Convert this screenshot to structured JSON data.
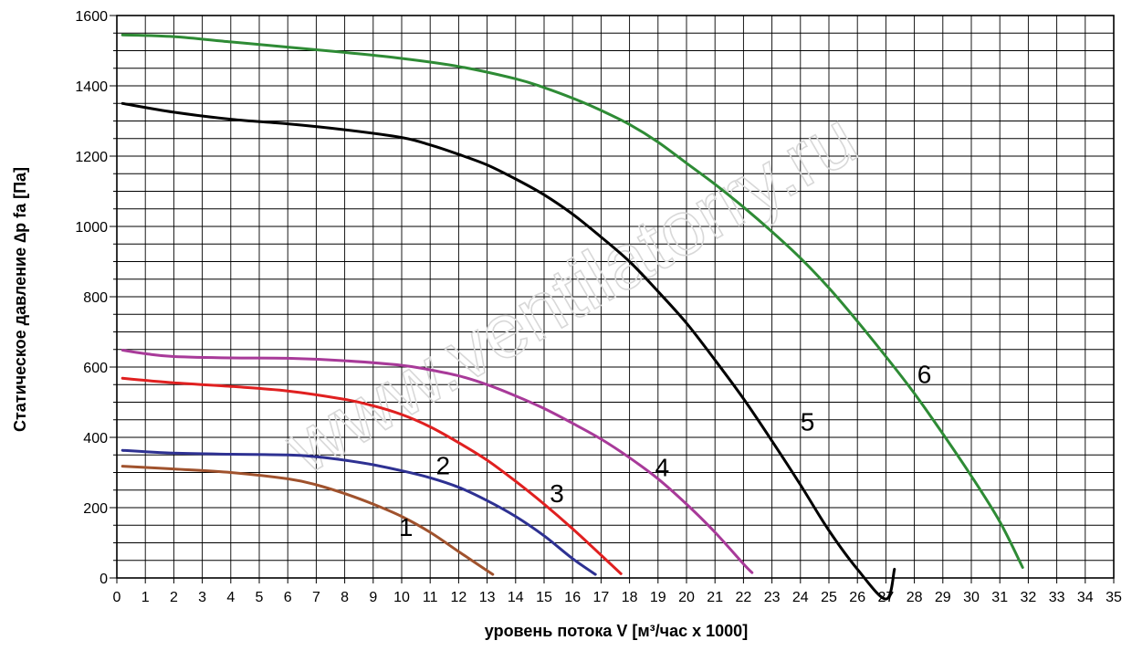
{
  "chart_data": {
    "type": "line",
    "xlabel": "уровень потока  V [м³/час х 1000]",
    "ylabel": "Статическое давление  ∆p fa [Па]",
    "xlim": [
      0,
      35
    ],
    "ylim": [
      0,
      1600
    ],
    "x_ticks": [
      0,
      1,
      2,
      3,
      4,
      5,
      6,
      7,
      8,
      9,
      10,
      11,
      12,
      13,
      14,
      15,
      16,
      17,
      18,
      19,
      20,
      21,
      22,
      23,
      24,
      25,
      26,
      27,
      28,
      29,
      30,
      31,
      32,
      33,
      34,
      35
    ],
    "y_ticks": [
      0,
      200,
      400,
      600,
      800,
      1000,
      1200,
      1400,
      1600
    ],
    "grid": true,
    "watermark": "www.ventilatorry.ru",
    "series": [
      {
        "name": "1",
        "color": "#a0522d",
        "label_pos": [
          9.9,
          120
        ],
        "x": [
          0.2,
          2,
          4,
          6,
          7,
          8,
          9,
          10,
          11,
          12,
          13.2
        ],
        "y": [
          318,
          310,
          300,
          282,
          265,
          240,
          210,
          175,
          130,
          75,
          10
        ]
      },
      {
        "name": "2",
        "color": "#2e3192",
        "label_pos": [
          11.2,
          295
        ],
        "x": [
          0.2,
          2,
          4,
          6,
          7,
          8,
          9,
          10,
          11,
          12,
          13,
          14,
          15,
          16,
          16.8
        ],
        "y": [
          363,
          355,
          352,
          350,
          345,
          335,
          322,
          305,
          285,
          258,
          220,
          175,
          120,
          55,
          10
        ]
      },
      {
        "name": "3",
        "color": "#e02020",
        "label_pos": [
          15.2,
          215
        ],
        "x": [
          0.2,
          2,
          4,
          6,
          8,
          9,
          10,
          11,
          12,
          13,
          14,
          15,
          16,
          17,
          17.7
        ],
        "y": [
          568,
          555,
          545,
          532,
          508,
          490,
          465,
          430,
          385,
          335,
          275,
          210,
          140,
          65,
          12
        ]
      },
      {
        "name": "4",
        "color": "#a83a99",
        "label_pos": [
          18.9,
          290
        ],
        "x": [
          0.2,
          1,
          2,
          4,
          6,
          8,
          10,
          11,
          12,
          13,
          14,
          15,
          16,
          17,
          18,
          19,
          20,
          21,
          22,
          22.3
        ],
        "y": [
          648,
          638,
          630,
          626,
          625,
          618,
          605,
          592,
          575,
          550,
          518,
          482,
          440,
          395,
          342,
          282,
          210,
          130,
          40,
          15
        ]
      },
      {
        "name": "5",
        "color": "#000000",
        "label_pos": [
          24,
          420
        ],
        "x": [
          0.2,
          2,
          4,
          6,
          8,
          10,
          11,
          12,
          13,
          14,
          15,
          16,
          17,
          18,
          19,
          20,
          21,
          22,
          23,
          24,
          25,
          26,
          27,
          27.3
        ],
        "y": [
          1350,
          1325,
          1305,
          1292,
          1275,
          1253,
          1232,
          1205,
          1175,
          1135,
          1090,
          1035,
          970,
          900,
          815,
          725,
          620,
          510,
          390,
          265,
          135,
          25,
          -60,
          25
        ]
      },
      {
        "name": "6",
        "color": "#2e8b35",
        "label_pos": [
          28.1,
          555
        ],
        "x": [
          0.2,
          2,
          4,
          6,
          8,
          10,
          12,
          14,
          15,
          16,
          17,
          18,
          19,
          20,
          21,
          22,
          23,
          24,
          25,
          26,
          27,
          28,
          29,
          30,
          31,
          31.8
        ],
        "y": [
          1545,
          1540,
          1525,
          1510,
          1495,
          1478,
          1455,
          1420,
          1395,
          1365,
          1330,
          1290,
          1240,
          1180,
          1120,
          1055,
          985,
          910,
          825,
          730,
          630,
          525,
          410,
          290,
          160,
          30
        ]
      }
    ]
  }
}
